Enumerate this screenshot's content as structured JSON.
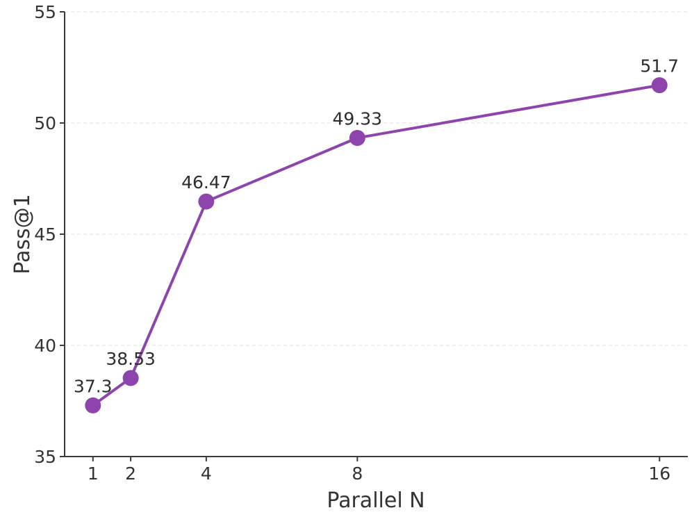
{
  "chart_data": {
    "type": "line",
    "x": [
      1,
      2,
      4,
      8,
      16
    ],
    "values": [
      37.3,
      38.53,
      46.47,
      49.33,
      51.7
    ],
    "point_labels": [
      "37.3",
      "38.53",
      "46.47",
      "49.33",
      "51.7"
    ],
    "xlabel": "Parallel N",
    "ylabel": "Pass@1",
    "xticks": [
      1,
      2,
      4,
      8,
      16
    ],
    "xtick_labels": [
      "1",
      "2",
      "4",
      "8",
      "16"
    ],
    "yticks": [
      35,
      40,
      45,
      50,
      55
    ],
    "ytick_labels": [
      "35",
      "40",
      "45",
      "50",
      "55"
    ],
    "xlim": [
      0.25,
      16.75
    ],
    "ylim": [
      35,
      55
    ],
    "x_scale": "linear",
    "grid": "horizontal-dashed",
    "legend_position": "none",
    "line_color": "#8e44ad",
    "marker_color": "#8e44ad",
    "grid_color": "#e5e5e5",
    "axis_color": "#3a3a3a",
    "tick_text_color": "#333333",
    "annotation_color": "#2d2d2d",
    "background_color": "#ffffff"
  }
}
